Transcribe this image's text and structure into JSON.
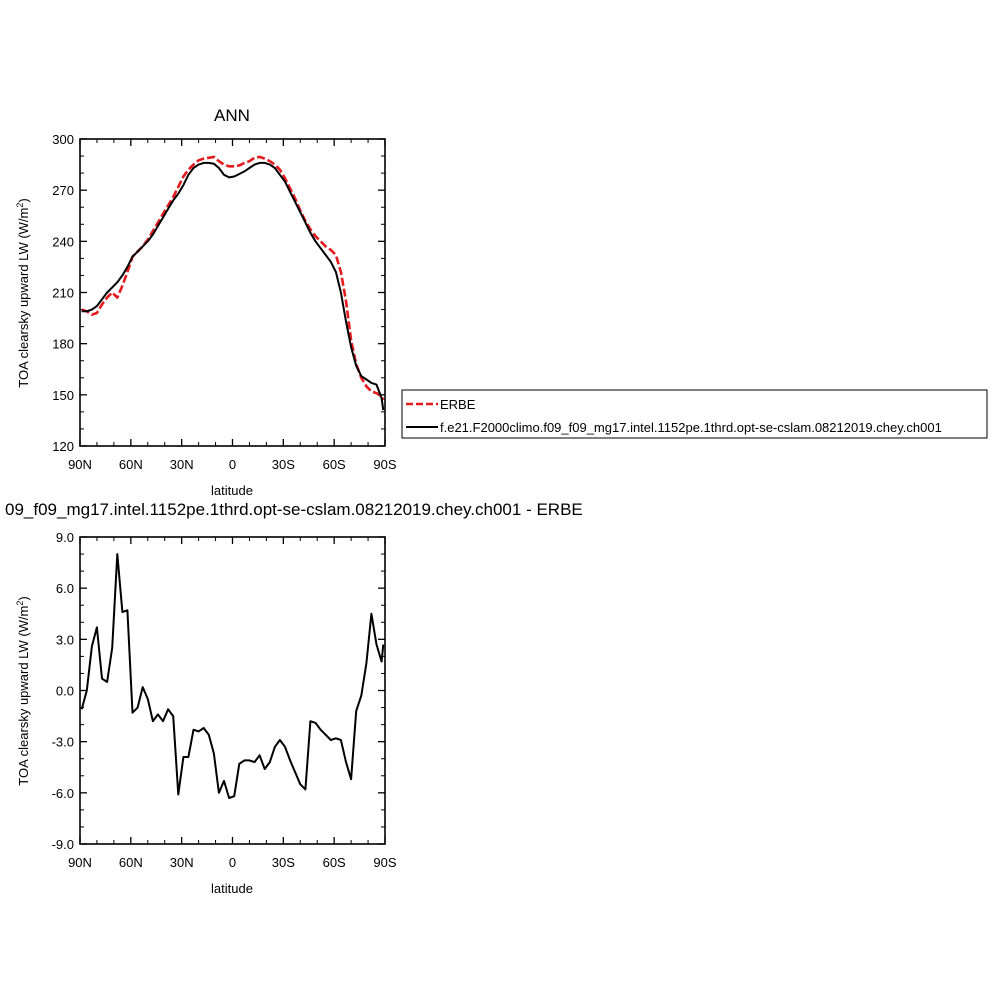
{
  "chart_data": [
    {
      "type": "line",
      "title": "ANN",
      "xlabel": "latitude",
      "ylabel": "TOA clearsky upward LW (W/m",
      "ylabel_sup": "2",
      "ylabel_tail": ")",
      "xlim": [
        90,
        -90
      ],
      "ylim": [
        120,
        300
      ],
      "x_ticks": [
        {
          "value": 90,
          "label": "90N"
        },
        {
          "value": 60,
          "label": "60N"
        },
        {
          "value": 30,
          "label": "30N"
        },
        {
          "value": 0,
          "label": "0"
        },
        {
          "value": -30,
          "label": "30S"
        },
        {
          "value": -60,
          "label": "60S"
        },
        {
          "value": -90,
          "label": "90S"
        }
      ],
      "y_ticks": [
        {
          "value": 120,
          "label": "120"
        },
        {
          "value": 150,
          "label": "150"
        },
        {
          "value": 180,
          "label": "180"
        },
        {
          "value": 210,
          "label": "210"
        },
        {
          "value": 240,
          "label": "240"
        },
        {
          "value": 270,
          "label": "270"
        },
        {
          "value": 300,
          "label": "300"
        }
      ],
      "legend_position": "right",
      "series": [
        {
          "name": "ERBE",
          "color": "#e41a1c",
          "dash": true,
          "x": [
            89,
            86,
            83,
            80,
            77,
            74,
            71,
            68,
            65,
            62,
            59,
            56,
            53,
            50,
            47,
            44,
            41,
            38,
            35,
            32,
            29,
            26,
            23,
            20,
            17,
            14,
            11,
            8,
            5,
            2,
            -1,
            -4,
            -7,
            -10,
            -13,
            -16,
            -19,
            -22,
            -25,
            -28,
            -31,
            -34,
            -37,
            -40,
            -43,
            -46,
            -49,
            -52,
            -55,
            -58,
            -61,
            -64,
            -67,
            -70,
            -73,
            -76,
            -79,
            -82,
            -85,
            -88,
            -89
          ],
          "y": [
            200,
            199,
            197,
            198,
            203,
            207,
            210,
            207,
            214,
            222,
            231,
            234,
            237,
            241,
            246,
            251,
            256,
            261,
            266,
            272,
            278,
            282,
            285,
            287.5,
            288.5,
            289,
            289.5,
            287,
            285,
            284,
            284,
            284.5,
            286,
            287,
            289,
            289.5,
            288.5,
            287,
            285,
            282,
            277,
            271,
            265,
            258,
            252,
            247,
            243,
            240,
            237,
            235,
            232,
            222,
            205,
            182,
            168,
            160,
            155,
            152,
            151,
            149,
            147
          ]
        },
        {
          "name": "f.e21.F2000climo.f09_f09_mg17.intel.1152pe.1thrd.opt-se-cslam.08212019.chey.ch001",
          "color": "#000000",
          "dash": false,
          "x": [
            89,
            86,
            83,
            80,
            77,
            74,
            71,
            68,
            65,
            62,
            59,
            56,
            53,
            50,
            47,
            44,
            41,
            38,
            35,
            32,
            29,
            26,
            23,
            20,
            17,
            14,
            11,
            8,
            5,
            2,
            -1,
            -4,
            -7,
            -10,
            -13,
            -16,
            -19,
            -22,
            -25,
            -28,
            -31,
            -34,
            -37,
            -40,
            -43,
            -46,
            -49,
            -52,
            -55,
            -58,
            -61,
            -64,
            -67,
            -70,
            -73,
            -76,
            -79,
            -82,
            -85,
            -88,
            -89
          ],
          "y": [
            199,
            199,
            200,
            202,
            206,
            210,
            213,
            216,
            220,
            225,
            231,
            234,
            237,
            240,
            244,
            249,
            254,
            259,
            264,
            268,
            273,
            279,
            283,
            285,
            286,
            286,
            285.5,
            283,
            279,
            277.5,
            278,
            279.5,
            281,
            283,
            285,
            286,
            286,
            285,
            283,
            279,
            275,
            269,
            263,
            257,
            251,
            245,
            240,
            236,
            232,
            228,
            222,
            210,
            193,
            178,
            167,
            161,
            159,
            157,
            156,
            148,
            141
          ]
        }
      ]
    },
    {
      "type": "line",
      "title": "09_f09_mg17.intel.1152pe.1thrd.opt-se-cslam.08212019.chey.ch001 - ERBE",
      "xlabel": "latitude",
      "ylabel": "TOA clearsky upward LW (W/m",
      "ylabel_sup": "2",
      "ylabel_tail": ")",
      "xlim": [
        90,
        -90
      ],
      "ylim": [
        -9,
        9
      ],
      "x_ticks": [
        {
          "value": 90,
          "label": "90N"
        },
        {
          "value": 60,
          "label": "60N"
        },
        {
          "value": 30,
          "label": "30N"
        },
        {
          "value": 0,
          "label": "0"
        },
        {
          "value": -30,
          "label": "30S"
        },
        {
          "value": -60,
          "label": "60S"
        },
        {
          "value": -90,
          "label": "90S"
        }
      ],
      "y_ticks": [
        {
          "value": -9,
          "label": "-9.0"
        },
        {
          "value": -6,
          "label": "-6.0"
        },
        {
          "value": -3,
          "label": "-3.0"
        },
        {
          "value": 0,
          "label": "0.0"
        },
        {
          "value": 3,
          "label": "3.0"
        },
        {
          "value": 6,
          "label": "6.0"
        },
        {
          "value": 9,
          "label": "9.0"
        }
      ],
      "series": [
        {
          "color": "#000000",
          "dash": false,
          "x": [
            89,
            86,
            83,
            80,
            77,
            74,
            71,
            68,
            65,
            62,
            59,
            56,
            53,
            50,
            47,
            44,
            41,
            38,
            35,
            32,
            29,
            26,
            23,
            20,
            17,
            14,
            11,
            8,
            5,
            2,
            -1,
            -4,
            -7,
            -10,
            -13,
            -16,
            -19,
            -22,
            -25,
            -28,
            -31,
            -34,
            -37,
            -40,
            -43,
            -46,
            -49,
            -52,
            -55,
            -58,
            -61,
            -64,
            -67,
            -70,
            -73,
            -76,
            -79,
            -82,
            -85,
            -88,
            -89
          ],
          "y": [
            -1.1,
            0.0,
            2.6,
            3.7,
            0.7,
            0.5,
            2.5,
            8.0,
            4.6,
            4.7,
            -1.3,
            -1.0,
            0.2,
            -0.5,
            -1.8,
            -1.4,
            -1.8,
            -1.1,
            -1.5,
            -6.1,
            -3.9,
            -3.9,
            -2.3,
            -2.4,
            -2.2,
            -2.6,
            -3.7,
            -6.0,
            -5.3,
            -6.3,
            -6.2,
            -4.3,
            -4.1,
            -4.1,
            -4.2,
            -3.8,
            -4.6,
            -4.2,
            -3.3,
            -2.9,
            -3.3,
            -4.1,
            -4.8,
            -5.5,
            -5.8,
            -1.8,
            -1.9,
            -2.3,
            -2.6,
            -2.9,
            -2.8,
            -2.9,
            -4.2,
            -5.2,
            -1.2,
            -0.3,
            1.6,
            4.5,
            2.7,
            1.7,
            2.7
          ]
        }
      ]
    }
  ]
}
